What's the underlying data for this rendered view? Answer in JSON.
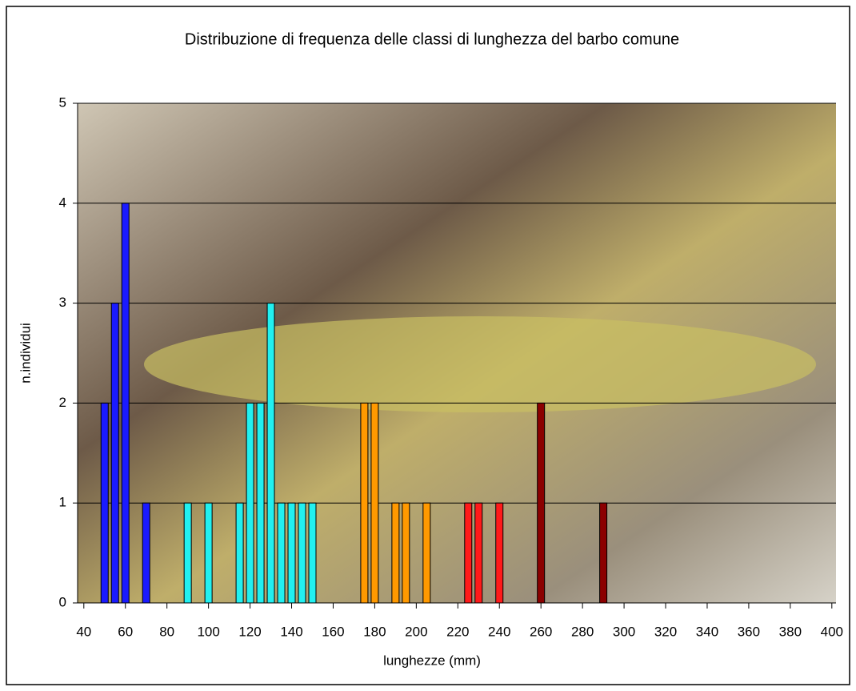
{
  "chart_data": {
    "type": "bar",
    "title": "Distribuzione di frequenza delle classi di lunghezza del barbo comune",
    "x_label": "lunghezze (mm)",
    "y_label": "n.individui",
    "xlim": [
      37,
      402
    ],
    "ylim": [
      0,
      5
    ],
    "xticks": [
      40,
      60,
      80,
      100,
      120,
      140,
      160,
      180,
      200,
      220,
      240,
      260,
      280,
      300,
      320,
      340,
      360,
      380,
      400
    ],
    "yticks": [
      0,
      1,
      2,
      3,
      4,
      5
    ],
    "grid": true,
    "series": [
      {
        "color": "#1a1aff",
        "x": [
          50,
          55,
          60,
          70
        ],
        "values": [
          2,
          3,
          4,
          1
        ]
      },
      {
        "color": "#22f0f0",
        "x": [
          90,
          100,
          115,
          120,
          125,
          130,
          135,
          140,
          145,
          150
        ],
        "values": [
          1,
          1,
          1,
          2,
          2,
          3,
          1,
          1,
          1,
          1
        ]
      },
      {
        "color": "#ff9900",
        "x": [
          175,
          180,
          190,
          195,
          205
        ],
        "values": [
          2,
          2,
          1,
          1,
          1
        ]
      },
      {
        "color": "#ff1a1a",
        "x": [
          225,
          230,
          240
        ],
        "values": [
          1,
          1,
          1
        ]
      },
      {
        "color": "#8b0000",
        "x": [
          260,
          290
        ],
        "values": [
          2,
          1
        ]
      }
    ]
  }
}
